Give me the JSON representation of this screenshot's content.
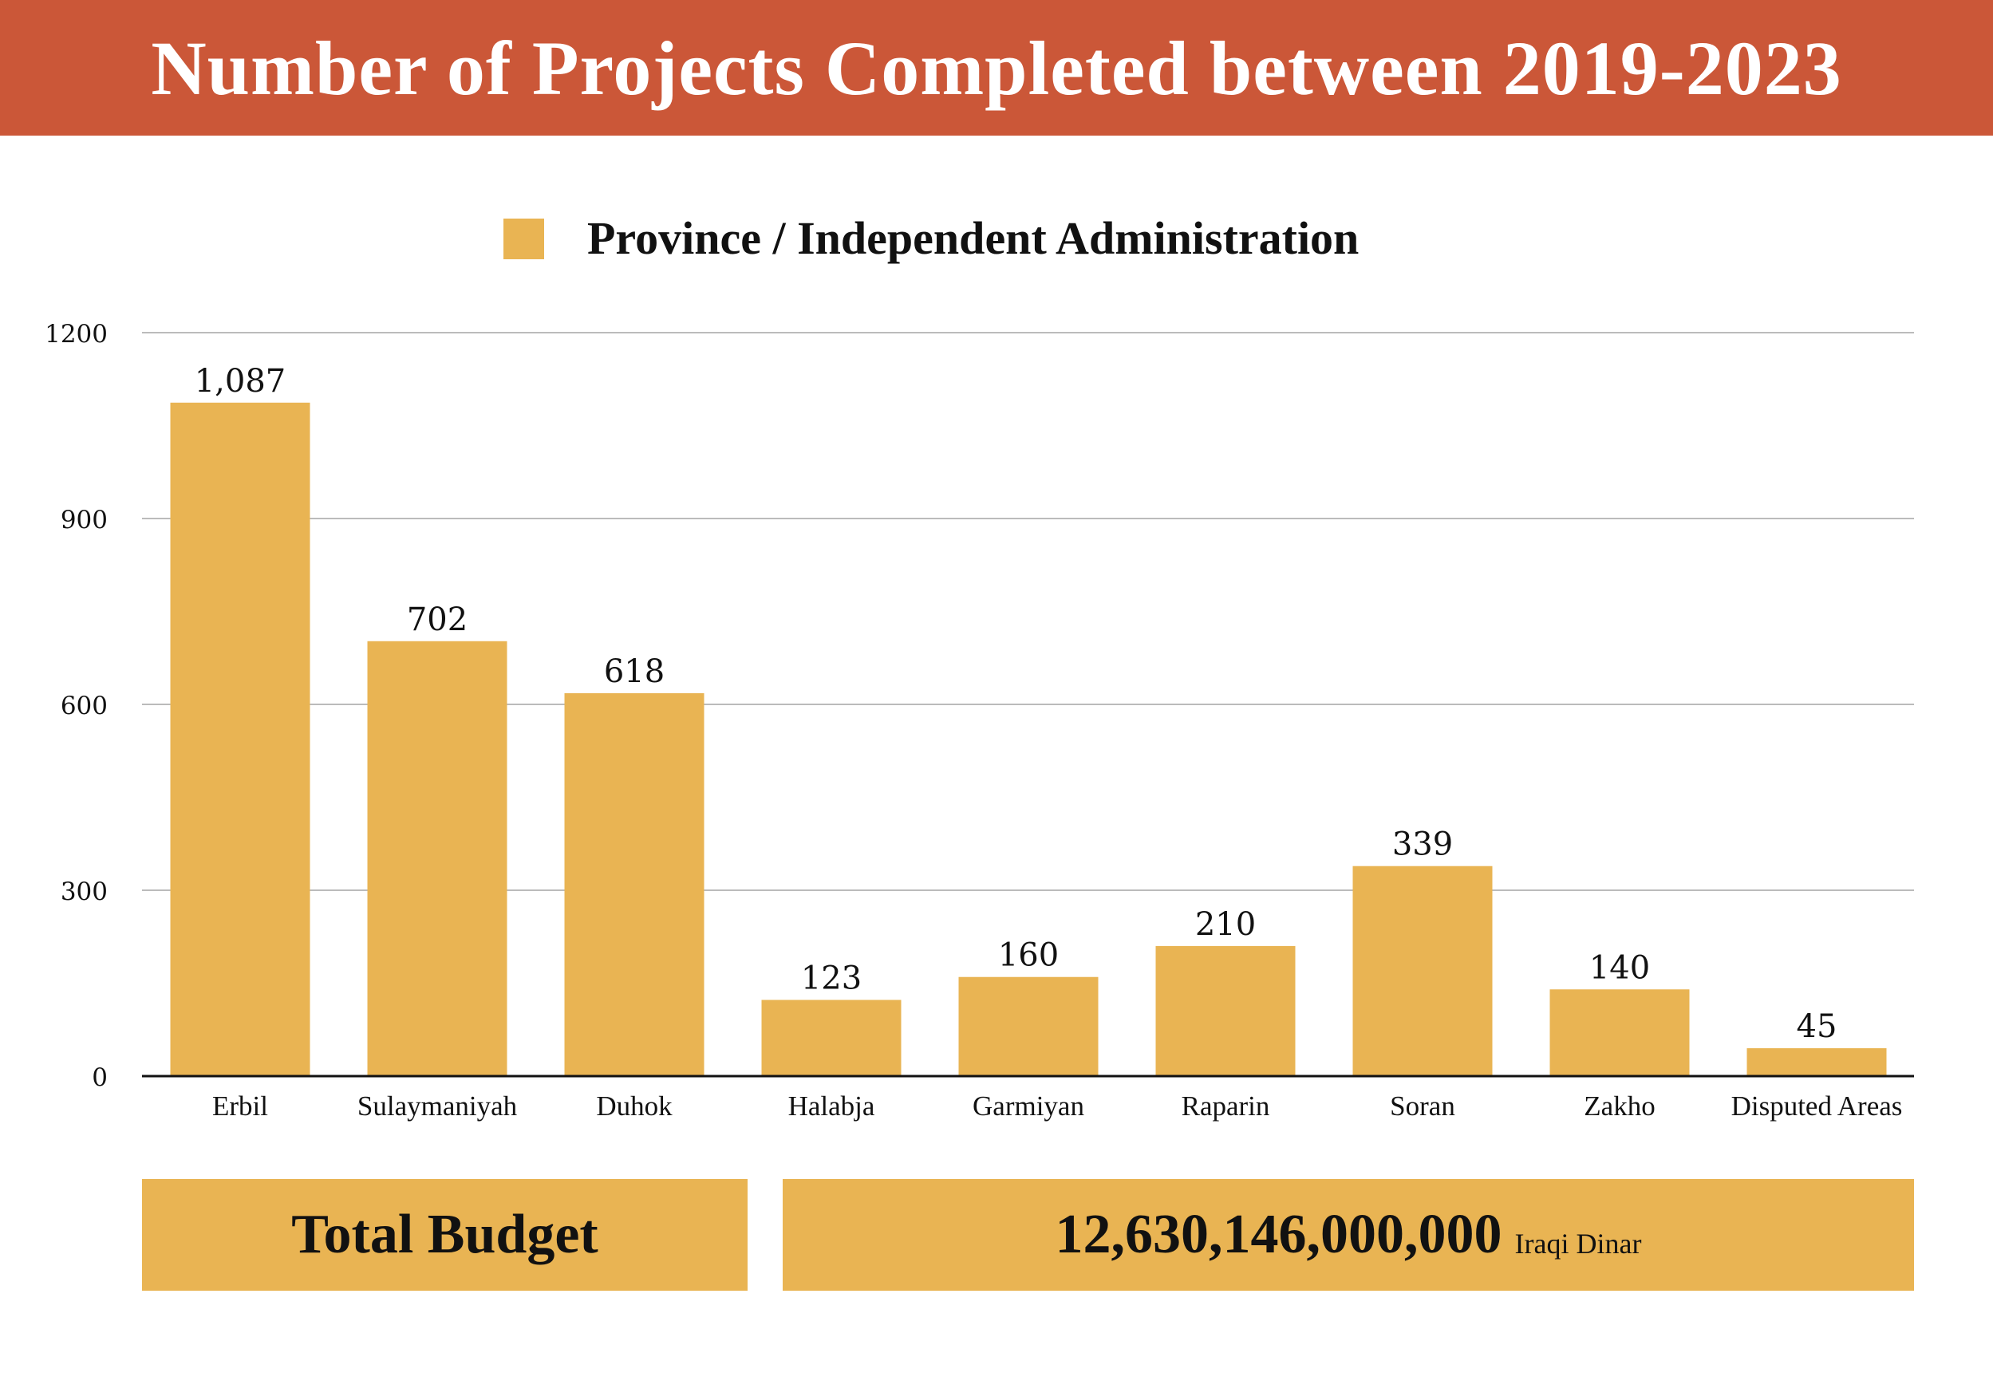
{
  "title": "Number of Projects Completed between 2019-2023",
  "colors": {
    "header": "#CB5738",
    "bar": "#E9B453",
    "grid": "#BBBBBB",
    "text": "#111111"
  },
  "chart_data": {
    "type": "bar",
    "title": "Number of Projects Completed between 2019-2023",
    "legend": [
      "Province / Independent Administration"
    ],
    "legend_position": "top-center",
    "categories": [
      "Erbil",
      "Sulaymaniyah",
      "Duhok",
      "Halabja",
      "Garmiyan",
      "Raparin",
      "Soran",
      "Zakho",
      "Disputed Areas"
    ],
    "values": [
      1087,
      702,
      618,
      123,
      160,
      210,
      339,
      140,
      45
    ],
    "value_labels": [
      "1,087",
      "702",
      "618",
      "123",
      "160",
      "210",
      "339",
      "140",
      "45"
    ],
    "ylim": [
      0,
      1200
    ],
    "yticks": [
      0,
      300,
      600,
      900,
      1200
    ],
    "grid": true,
    "xlabel": "",
    "ylabel": ""
  },
  "budget": {
    "label": "Total Budget",
    "value": "12,630,146,000,000",
    "unit": "Iraqi Dinar"
  }
}
